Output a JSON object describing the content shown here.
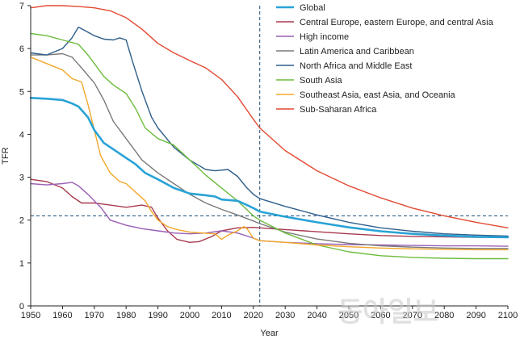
{
  "chart_data": {
    "type": "line",
    "title": "",
    "xlabel": "Year",
    "ylabel": "TFR",
    "xlim": [
      1950,
      2100
    ],
    "ylim": [
      0,
      7
    ],
    "x_ticks": [
      1950,
      1960,
      1970,
      1980,
      1990,
      2000,
      2010,
      2020,
      2030,
      2040,
      2050,
      2060,
      2070,
      2080,
      2090,
      2100
    ],
    "y_ticks": [
      0,
      1,
      2,
      3,
      4,
      5,
      6,
      7
    ],
    "reference_lines": [
      {
        "orientation": "vertical",
        "value": 2022,
        "style": "dashed",
        "color": "#2f5f86"
      },
      {
        "orientation": "horizontal",
        "value": 2.1,
        "style": "dashed",
        "color": "#2f5f86"
      }
    ],
    "legend_position": "top-right",
    "watermark": "동아일보",
    "series": [
      {
        "name": "Global",
        "color": "#29a3d6",
        "width": 2.6,
        "points": [
          [
            1950,
            4.85
          ],
          [
            1955,
            4.83
          ],
          [
            1960,
            4.8
          ],
          [
            1963,
            4.72
          ],
          [
            1965,
            4.65
          ],
          [
            1968,
            4.4
          ],
          [
            1970,
            4.1
          ],
          [
            1973,
            3.8
          ],
          [
            1977,
            3.6
          ],
          [
            1980,
            3.45
          ],
          [
            1983,
            3.3
          ],
          [
            1986,
            3.1
          ],
          [
            1990,
            2.95
          ],
          [
            1995,
            2.75
          ],
          [
            2000,
            2.62
          ],
          [
            2005,
            2.58
          ],
          [
            2008,
            2.55
          ],
          [
            2010,
            2.48
          ],
          [
            2015,
            2.45
          ],
          [
            2018,
            2.35
          ],
          [
            2020,
            2.28
          ],
          [
            2022,
            2.2
          ],
          [
            2030,
            2.08
          ],
          [
            2040,
            1.95
          ],
          [
            2050,
            1.83
          ],
          [
            2060,
            1.74
          ],
          [
            2070,
            1.68
          ],
          [
            2080,
            1.64
          ],
          [
            2090,
            1.61
          ],
          [
            2100,
            1.6
          ]
        ]
      },
      {
        "name": "Central Europe, eastern Europe, and central Asia",
        "color": "#a83a4f",
        "width": 1.4,
        "points": [
          [
            1950,
            2.95
          ],
          [
            1955,
            2.9
          ],
          [
            1960,
            2.75
          ],
          [
            1963,
            2.55
          ],
          [
            1966,
            2.4
          ],
          [
            1970,
            2.4
          ],
          [
            1975,
            2.35
          ],
          [
            1980,
            2.3
          ],
          [
            1985,
            2.35
          ],
          [
            1988,
            2.3
          ],
          [
            1990,
            2.05
          ],
          [
            1993,
            1.75
          ],
          [
            1996,
            1.55
          ],
          [
            2000,
            1.48
          ],
          [
            2003,
            1.5
          ],
          [
            2007,
            1.62
          ],
          [
            2010,
            1.75
          ],
          [
            2015,
            1.82
          ],
          [
            2020,
            1.83
          ],
          [
            2022,
            1.82
          ],
          [
            2030,
            1.78
          ],
          [
            2040,
            1.73
          ],
          [
            2050,
            1.68
          ],
          [
            2060,
            1.64
          ],
          [
            2070,
            1.62
          ],
          [
            2080,
            1.61
          ],
          [
            2090,
            1.6
          ],
          [
            2100,
            1.6
          ]
        ]
      },
      {
        "name": "High income",
        "color": "#9a5fb5",
        "width": 1.4,
        "points": [
          [
            1950,
            2.85
          ],
          [
            1955,
            2.82
          ],
          [
            1960,
            2.85
          ],
          [
            1963,
            2.88
          ],
          [
            1965,
            2.8
          ],
          [
            1968,
            2.6
          ],
          [
            1972,
            2.3
          ],
          [
            1975,
            2.0
          ],
          [
            1980,
            1.88
          ],
          [
            1985,
            1.8
          ],
          [
            1990,
            1.75
          ],
          [
            1995,
            1.7
          ],
          [
            2000,
            1.68
          ],
          [
            2005,
            1.7
          ],
          [
            2010,
            1.75
          ],
          [
            2015,
            1.7
          ],
          [
            2020,
            1.58
          ],
          [
            2022,
            1.52
          ],
          [
            2030,
            1.48
          ],
          [
            2040,
            1.45
          ],
          [
            2050,
            1.43
          ],
          [
            2060,
            1.42
          ],
          [
            2070,
            1.41
          ],
          [
            2080,
            1.4
          ],
          [
            2090,
            1.4
          ],
          [
            2100,
            1.39
          ]
        ]
      },
      {
        "name": "Latin America and Caribbean",
        "color": "#7a7a7a",
        "width": 1.4,
        "points": [
          [
            1950,
            5.85
          ],
          [
            1955,
            5.85
          ],
          [
            1960,
            5.88
          ],
          [
            1963,
            5.8
          ],
          [
            1966,
            5.55
          ],
          [
            1970,
            5.2
          ],
          [
            1973,
            4.8
          ],
          [
            1976,
            4.3
          ],
          [
            1980,
            3.9
          ],
          [
            1985,
            3.4
          ],
          [
            1990,
            3.1
          ],
          [
            1995,
            2.85
          ],
          [
            2000,
            2.6
          ],
          [
            2005,
            2.4
          ],
          [
            2010,
            2.25
          ],
          [
            2015,
            2.12
          ],
          [
            2020,
            1.98
          ],
          [
            2022,
            1.92
          ],
          [
            2030,
            1.72
          ],
          [
            2040,
            1.56
          ],
          [
            2050,
            1.46
          ],
          [
            2060,
            1.4
          ],
          [
            2070,
            1.37
          ],
          [
            2080,
            1.35
          ],
          [
            2090,
            1.34
          ],
          [
            2100,
            1.34
          ]
        ]
      },
      {
        "name": "North Africa and Middle East",
        "color": "#2e5e8a",
        "width": 1.4,
        "points": [
          [
            1950,
            5.9
          ],
          [
            1955,
            5.85
          ],
          [
            1960,
            6.0
          ],
          [
            1963,
            6.25
          ],
          [
            1965,
            6.5
          ],
          [
            1967,
            6.42
          ],
          [
            1970,
            6.3
          ],
          [
            1973,
            6.22
          ],
          [
            1976,
            6.2
          ],
          [
            1978,
            6.25
          ],
          [
            1980,
            6.2
          ],
          [
            1982,
            5.7
          ],
          [
            1985,
            5.0
          ],
          [
            1988,
            4.4
          ],
          [
            1990,
            4.15
          ],
          [
            1995,
            3.7
          ],
          [
            2000,
            3.4
          ],
          [
            2005,
            3.18
          ],
          [
            2008,
            3.15
          ],
          [
            2012,
            3.18
          ],
          [
            2015,
            3.02
          ],
          [
            2018,
            2.75
          ],
          [
            2020,
            2.6
          ],
          [
            2022,
            2.5
          ],
          [
            2030,
            2.32
          ],
          [
            2040,
            2.12
          ],
          [
            2050,
            1.95
          ],
          [
            2060,
            1.82
          ],
          [
            2070,
            1.74
          ],
          [
            2080,
            1.68
          ],
          [
            2090,
            1.65
          ],
          [
            2100,
            1.63
          ]
        ]
      },
      {
        "name": "South Asia",
        "color": "#6cbb3c",
        "width": 1.4,
        "points": [
          [
            1950,
            6.35
          ],
          [
            1955,
            6.3
          ],
          [
            1960,
            6.2
          ],
          [
            1965,
            6.1
          ],
          [
            1968,
            5.85
          ],
          [
            1970,
            5.65
          ],
          [
            1973,
            5.35
          ],
          [
            1976,
            5.15
          ],
          [
            1980,
            4.95
          ],
          [
            1983,
            4.6
          ],
          [
            1986,
            4.15
          ],
          [
            1990,
            3.9
          ],
          [
            1995,
            3.75
          ],
          [
            2000,
            3.4
          ],
          [
            2005,
            3.05
          ],
          [
            2010,
            2.75
          ],
          [
            2015,
            2.45
          ],
          [
            2020,
            2.1
          ],
          [
            2022,
            2.0
          ],
          [
            2030,
            1.7
          ],
          [
            2040,
            1.42
          ],
          [
            2050,
            1.26
          ],
          [
            2060,
            1.17
          ],
          [
            2070,
            1.13
          ],
          [
            2080,
            1.11
          ],
          [
            2090,
            1.1
          ],
          [
            2100,
            1.1
          ]
        ]
      },
      {
        "name": "Southeast Asia, east Asia, and Oceania",
        "color": "#f2a82b",
        "width": 1.4,
        "points": [
          [
            1950,
            5.8
          ],
          [
            1955,
            5.65
          ],
          [
            1960,
            5.5
          ],
          [
            1963,
            5.3
          ],
          [
            1966,
            5.22
          ],
          [
            1968,
            4.7
          ],
          [
            1970,
            4.1
          ],
          [
            1972,
            3.5
          ],
          [
            1975,
            3.1
          ],
          [
            1978,
            2.9
          ],
          [
            1980,
            2.85
          ],
          [
            1983,
            2.65
          ],
          [
            1986,
            2.45
          ],
          [
            1988,
            2.2
          ],
          [
            1990,
            2.0
          ],
          [
            1993,
            1.85
          ],
          [
            1996,
            1.78
          ],
          [
            2000,
            1.72
          ],
          [
            2004,
            1.7
          ],
          [
            2008,
            1.68
          ],
          [
            2010,
            1.55
          ],
          [
            2012,
            1.65
          ],
          [
            2015,
            1.75
          ],
          [
            2017,
            1.85
          ],
          [
            2018,
            1.8
          ],
          [
            2020,
            1.58
          ],
          [
            2022,
            1.52
          ],
          [
            2030,
            1.48
          ],
          [
            2040,
            1.42
          ],
          [
            2050,
            1.38
          ],
          [
            2060,
            1.35
          ],
          [
            2070,
            1.33
          ],
          [
            2080,
            1.32
          ],
          [
            2090,
            1.31
          ],
          [
            2100,
            1.31
          ]
        ]
      },
      {
        "name": "Sub-Saharan Africa",
        "color": "#e24a33",
        "width": 1.4,
        "points": [
          [
            1950,
            6.95
          ],
          [
            1955,
            7.0
          ],
          [
            1960,
            7.0
          ],
          [
            1965,
            6.98
          ],
          [
            1970,
            6.95
          ],
          [
            1975,
            6.88
          ],
          [
            1980,
            6.72
          ],
          [
            1985,
            6.45
          ],
          [
            1990,
            6.12
          ],
          [
            1995,
            5.9
          ],
          [
            2000,
            5.72
          ],
          [
            2005,
            5.55
          ],
          [
            2010,
            5.28
          ],
          [
            2015,
            4.88
          ],
          [
            2020,
            4.35
          ],
          [
            2022,
            4.15
          ],
          [
            2030,
            3.62
          ],
          [
            2040,
            3.15
          ],
          [
            2050,
            2.8
          ],
          [
            2060,
            2.52
          ],
          [
            2070,
            2.28
          ],
          [
            2080,
            2.1
          ],
          [
            2090,
            1.95
          ],
          [
            2100,
            1.82
          ]
        ]
      }
    ]
  }
}
